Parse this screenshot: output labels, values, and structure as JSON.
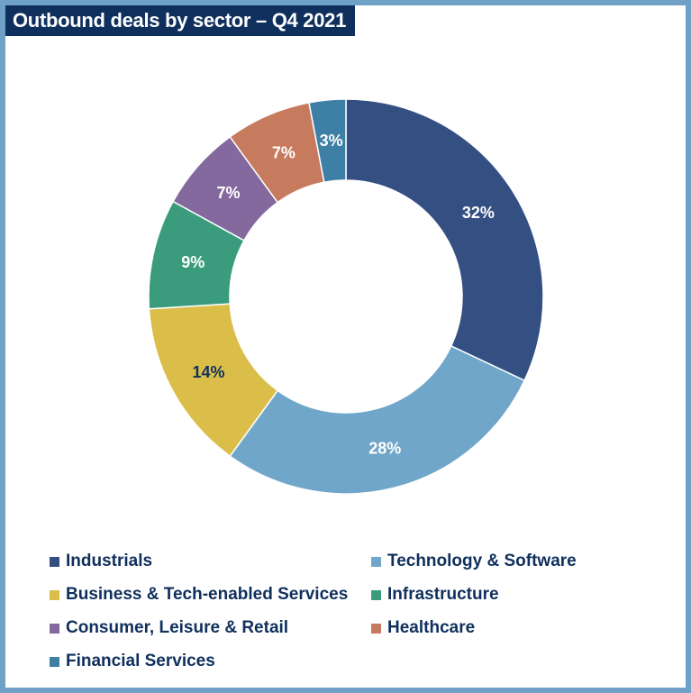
{
  "title": "Outbound deals by sector – Q4 2021",
  "chart_data": {
    "type": "pie",
    "title": "Outbound deals by sector – Q4 2021",
    "donut": true,
    "legend_position": "bottom",
    "slices": [
      {
        "name": "Industrials",
        "value": 32,
        "label": "32%",
        "color": "#344f82",
        "label_color": "#ffffff"
      },
      {
        "name": "Technology & Software",
        "value": 28,
        "label": "28%",
        "color": "#70a6c9",
        "label_color": "#ffffff"
      },
      {
        "name": "Business & Tech-enabled Services",
        "value": 14,
        "label": "14%",
        "color": "#dbbe4a",
        "label_color": "#0f2f5c"
      },
      {
        "name": "Infrastructure",
        "value": 9,
        "label": "9%",
        "color": "#3a9c7c",
        "label_color": "#ffffff"
      },
      {
        "name": "Consumer, Leisure & Retail",
        "value": 7,
        "label": "7%",
        "color": "#84699e",
        "label_color": "#ffffff"
      },
      {
        "name": "Healthcare",
        "value": 7,
        "label": "7%",
        "color": "#c77b5e",
        "label_color": "#ffffff"
      },
      {
        "name": "Financial Services",
        "value": 3,
        "label": "3%",
        "color": "#3e7fa6",
        "label_color": "#ffffff"
      }
    ]
  }
}
